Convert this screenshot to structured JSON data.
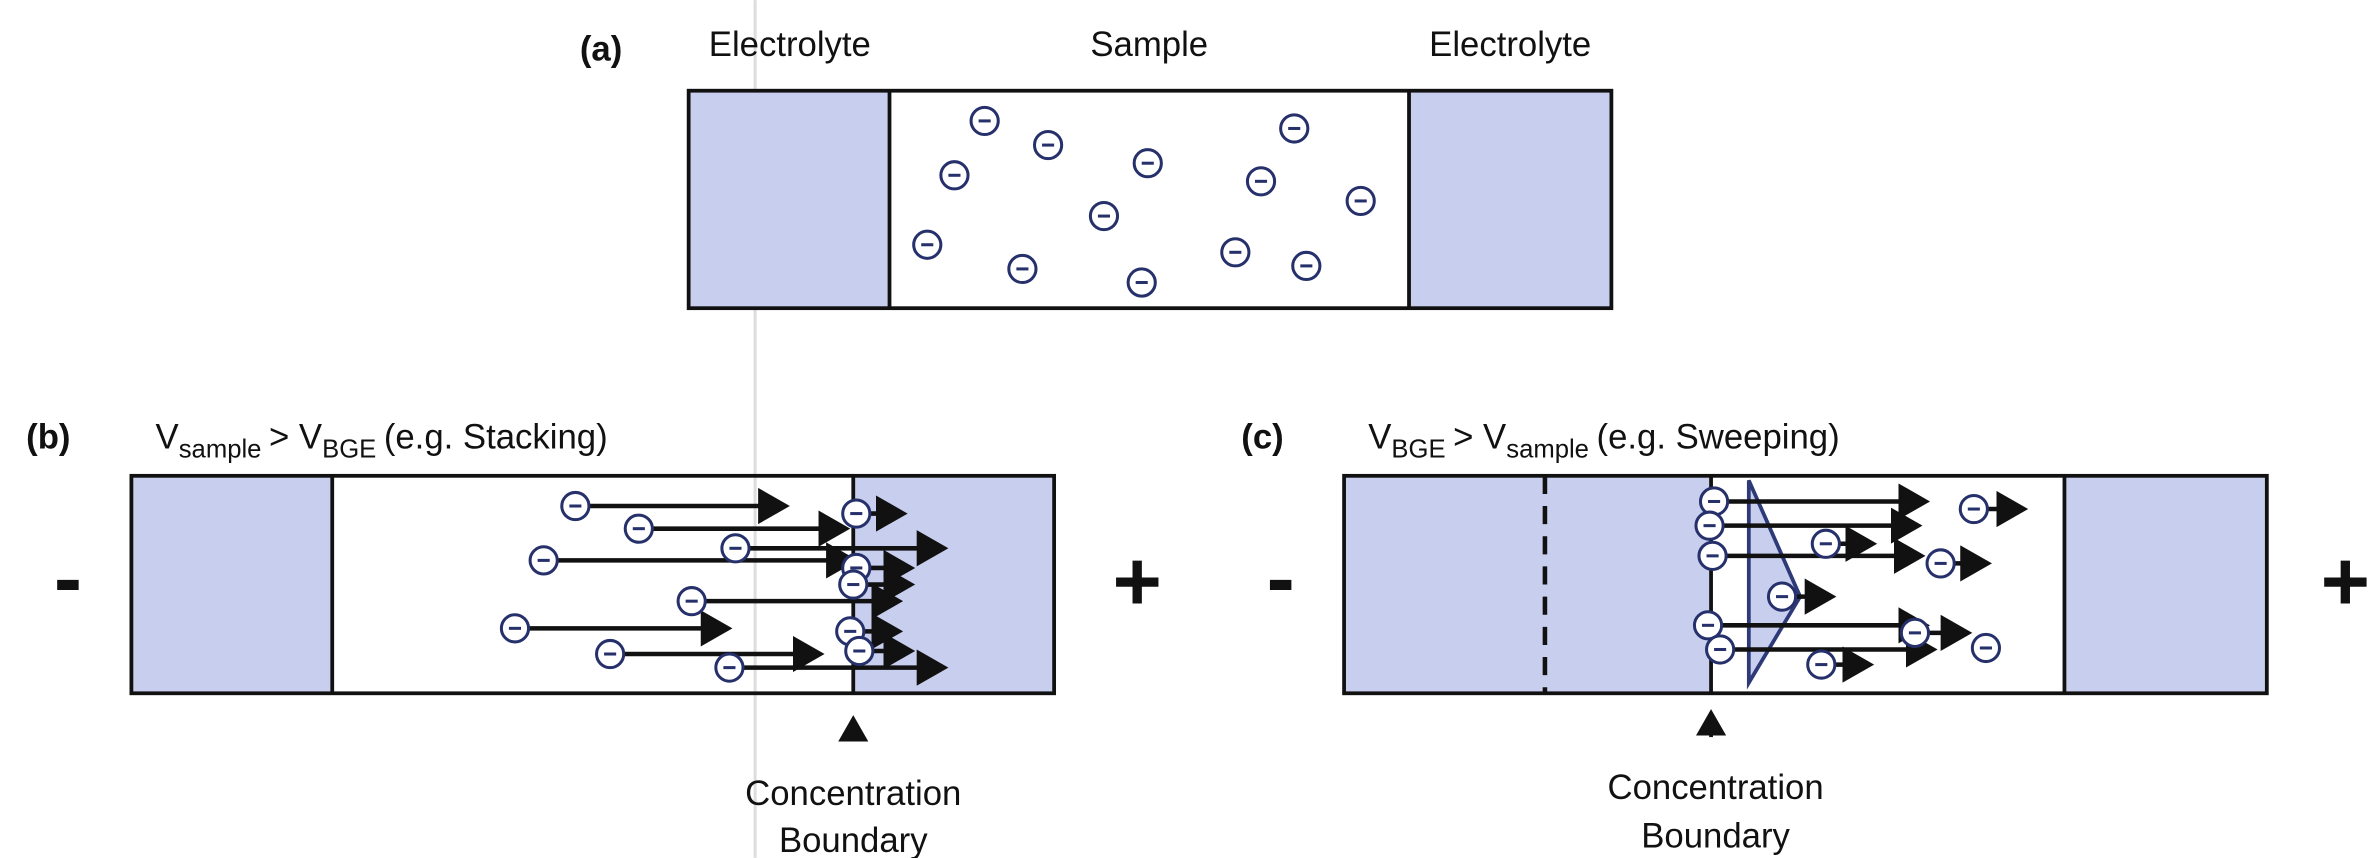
{
  "panel_a": {
    "label": "(a)",
    "zones": [
      "Electrolyte",
      "Sample",
      "Electrolyte"
    ]
  },
  "panel_b": {
    "label": "(b)",
    "condition": {
      "v1": "V",
      "sub1": "sample",
      "mid": "> V",
      "sub2": "BGE",
      "note": "(e.g. Stacking)"
    },
    "electrodes": [
      "-",
      "+"
    ],
    "boundary": [
      "Concentration",
      "Boundary"
    ]
  },
  "panel_c": {
    "label": "(c)",
    "condition": {
      "v1": "V",
      "sub1": "BGE",
      "mid": "> V",
      "sub2": "sample",
      "note": "(e.g. Sweeping)"
    },
    "electrodes": [
      "-",
      "+"
    ],
    "boundary": [
      "Concentration",
      "Boundary"
    ]
  }
}
